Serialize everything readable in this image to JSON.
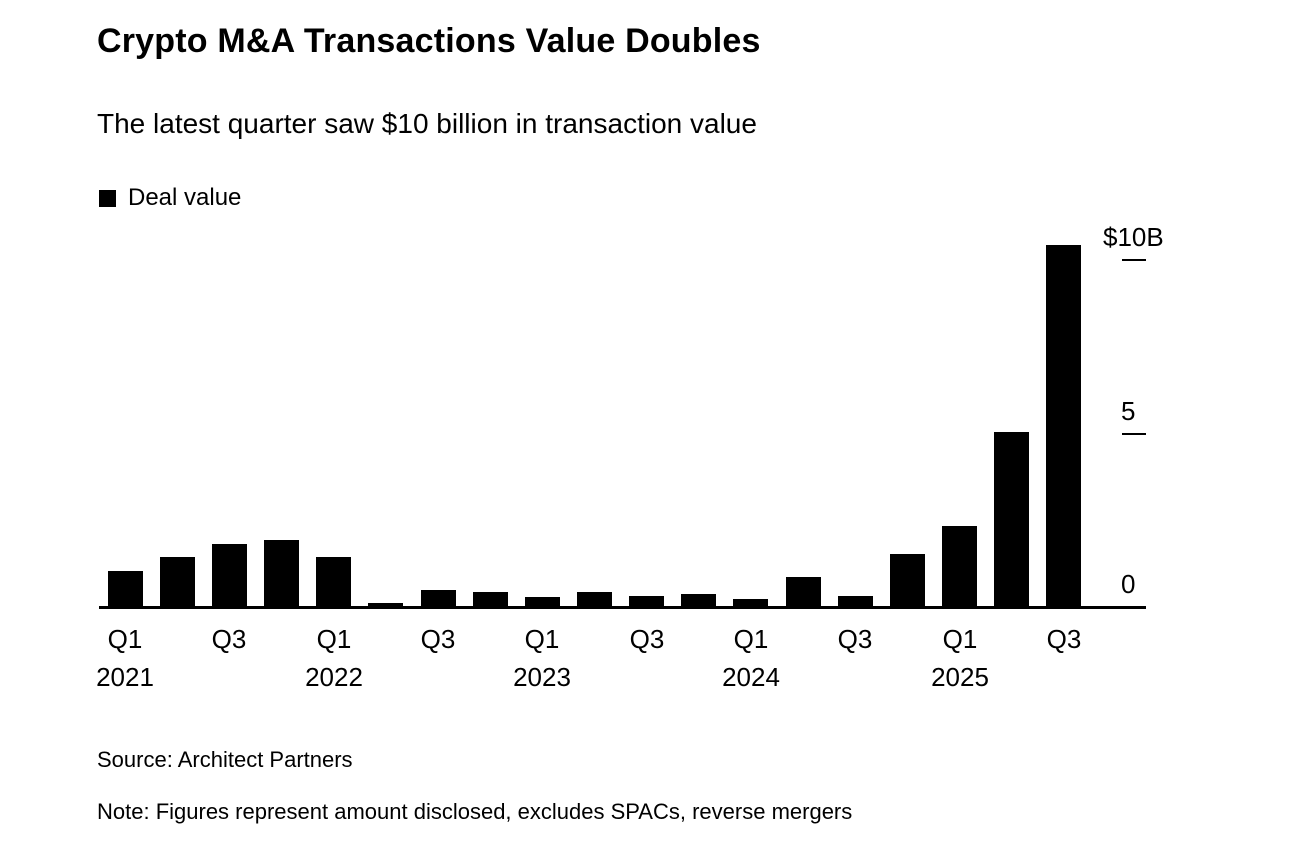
{
  "chart_data": {
    "type": "bar",
    "title": "Crypto M&A Transactions Value Doubles",
    "subtitle": "The latest quarter saw $10 billion in transaction value",
    "legend": [
      {
        "label": "Deal value",
        "color": "#000000"
      }
    ],
    "legend_position": "top-left",
    "grid": false,
    "bar_color": "#000000",
    "x": [
      "Q1 2021",
      "Q2 2021",
      "Q3 2021",
      "Q4 2021",
      "Q1 2022",
      "Q2 2022",
      "Q3 2022",
      "Q4 2022",
      "Q1 2023",
      "Q2 2023",
      "Q3 2023",
      "Q4 2023",
      "Q1 2024",
      "Q2 2024",
      "Q3 2024",
      "Q4 2024",
      "Q1 2025",
      "Q2 2025",
      "Q3 2025"
    ],
    "values": [
      1.0,
      1.4,
      1.8,
      1.9,
      1.4,
      0.1,
      0.45,
      0.4,
      0.25,
      0.4,
      0.3,
      0.35,
      0.2,
      0.85,
      0.3,
      1.5,
      2.3,
      5.0,
      10.4
    ],
    "ylim": [
      0,
      10.5
    ],
    "yticks": [
      {
        "value": 10,
        "label": "$10B"
      },
      {
        "value": 5,
        "label": "5"
      },
      {
        "value": 0,
        "label": "0"
      }
    ],
    "xticks": [
      {
        "index": 0,
        "label": "Q1",
        "year": "2021"
      },
      {
        "index": 2,
        "label": "Q3"
      },
      {
        "index": 4,
        "label": "Q1",
        "year": "2022"
      },
      {
        "index": 6,
        "label": "Q3"
      },
      {
        "index": 8,
        "label": "Q1",
        "year": "2023"
      },
      {
        "index": 10,
        "label": "Q3"
      },
      {
        "index": 12,
        "label": "Q1",
        "year": "2024"
      },
      {
        "index": 14,
        "label": "Q3"
      },
      {
        "index": 16,
        "label": "Q1",
        "year": "2025"
      },
      {
        "index": 18,
        "label": "Q3"
      }
    ],
    "source": "Source: Architect Partners",
    "note": "Note: Figures represent amount disclosed, excludes SPACs, reverse mergers"
  }
}
